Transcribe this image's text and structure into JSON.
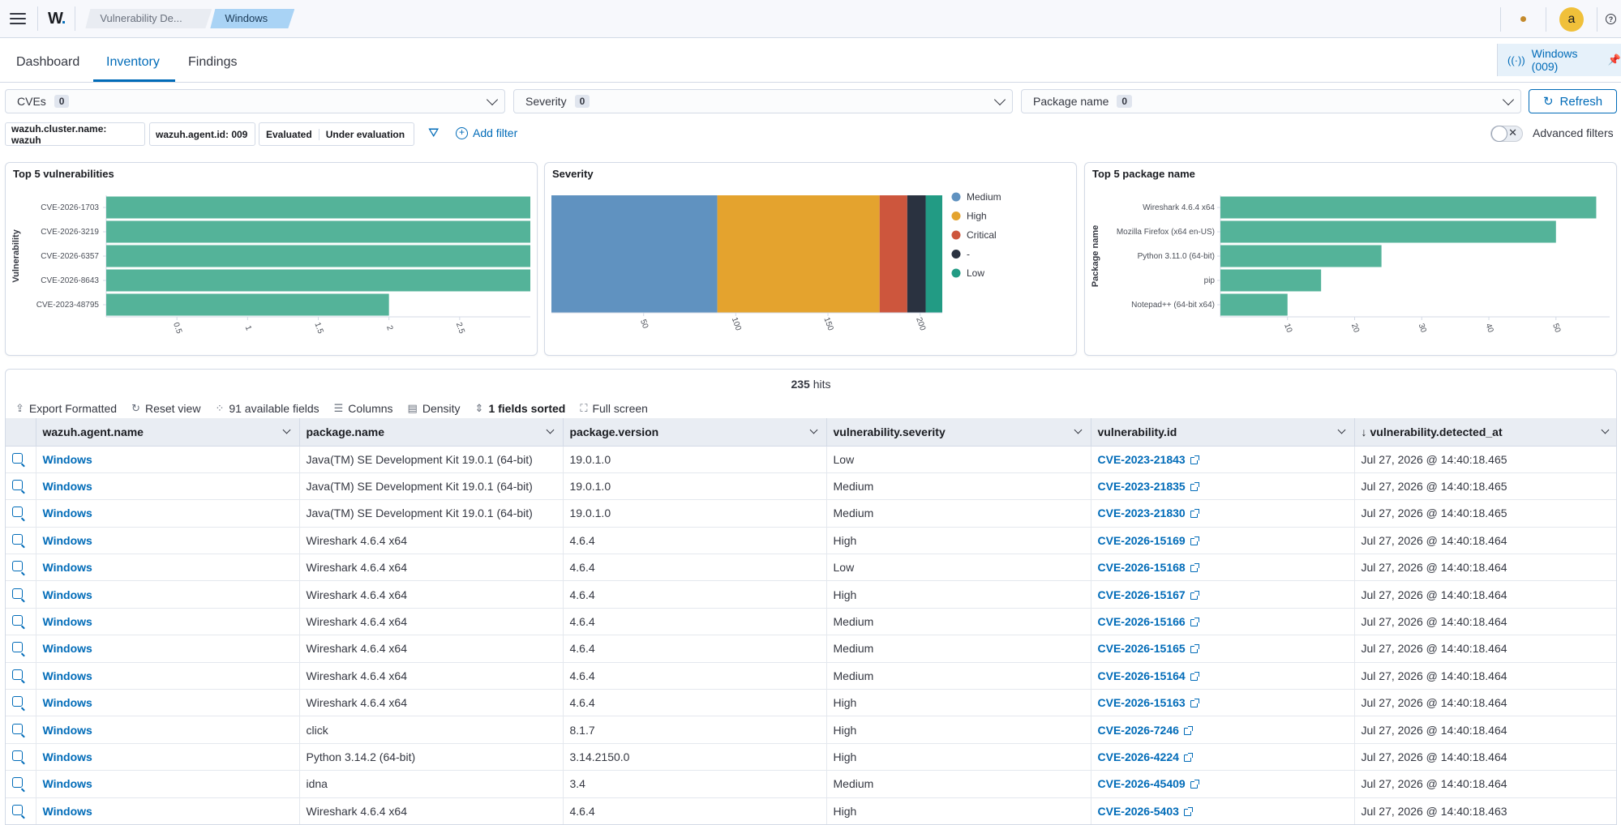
{
  "header": {
    "logo": "W.",
    "breadcrumbs": [
      "Vulnerability De...",
      "Windows"
    ],
    "avatar_letter": "a",
    "help": "?"
  },
  "tabs": [
    "Dashboard",
    "Inventory",
    "Findings"
  ],
  "active_tab": "Inventory",
  "agent_pill": "Windows (009)",
  "filters": {
    "cves": {
      "label": "CVEs",
      "count": "0"
    },
    "severity": {
      "label": "Severity",
      "count": "0"
    },
    "package": {
      "label": "Package name",
      "count": "0"
    },
    "refresh": "Refresh",
    "pills": [
      "wazuh.cluster.name: wazuh",
      "wazuh.agent.id: 009"
    ],
    "status_pill": [
      "Evaluated",
      "Under evaluation"
    ],
    "add_filter": "Add filter",
    "advanced": "Advanced filters"
  },
  "chart_data": [
    {
      "type": "bar",
      "orientation": "horizontal",
      "title": "Top 5 vulnerabilities",
      "ylabel": "Vulnerability",
      "categories": [
        "CVE-2026-1703",
        "CVE-2026-3219",
        "CVE-2026-6357",
        "CVE-2026-8643",
        "CVE-2023-48795"
      ],
      "values": [
        3,
        3,
        3,
        3,
        2
      ],
      "xticks": [
        "0.5",
        "1",
        "1.5",
        "2",
        "2.5"
      ],
      "xlim": [
        0,
        3
      ],
      "color": "#54b399"
    },
    {
      "type": "bar",
      "orientation": "stacked-horizontal",
      "title": "Severity",
      "series": [
        {
          "name": "Medium",
          "value": 90,
          "color": "#6092c0"
        },
        {
          "name": "High",
          "value": 88,
          "color": "#e4a32e"
        },
        {
          "name": "Critical",
          "value": 15,
          "color": "#cd563d"
        },
        {
          "name": "-",
          "value": 10,
          "color": "#2a3240"
        },
        {
          "name": "Low",
          "value": 9,
          "color": "#229b84"
        }
      ],
      "xticks": [
        "50",
        "100",
        "150",
        "200"
      ],
      "xlim": [
        0,
        212
      ],
      "legend_position": "right"
    },
    {
      "type": "bar",
      "orientation": "horizontal",
      "title": "Top 5 package name",
      "ylabel": "Package name",
      "categories": [
        "Wireshark 4.6.4 x64",
        "Mozilla Firefox (x64 en-US)",
        "Python 3.11.0 (64-bit)",
        "pip",
        "Notepad++ (64-bit x64)"
      ],
      "values": [
        56,
        50,
        24,
        15,
        10
      ],
      "xticks": [
        "10",
        "20",
        "30",
        "40",
        "50"
      ],
      "xlim": [
        0,
        58
      ],
      "color": "#54b399"
    }
  ],
  "table": {
    "hits_count": "235",
    "hits_label": "hits",
    "toolbar": [
      "Export Formatted",
      "Reset view",
      "91 available fields",
      "Columns",
      "Density",
      "1 fields sorted",
      "Full screen"
    ],
    "columns": [
      "wazuh.agent.name",
      "package.name",
      "package.version",
      "vulnerability.severity",
      "vulnerability.id",
      "vulnerability.detected_at"
    ],
    "rows": [
      [
        "Windows",
        "Java(TM) SE Development Kit 19.0.1 (64-bit)",
        "19.0.1.0",
        "Low",
        "CVE-2023-21843",
        "Jul 27, 2026 @ 14:40:18.465"
      ],
      [
        "Windows",
        "Java(TM) SE Development Kit 19.0.1 (64-bit)",
        "19.0.1.0",
        "Medium",
        "CVE-2023-21835",
        "Jul 27, 2026 @ 14:40:18.465"
      ],
      [
        "Windows",
        "Java(TM) SE Development Kit 19.0.1 (64-bit)",
        "19.0.1.0",
        "Medium",
        "CVE-2023-21830",
        "Jul 27, 2026 @ 14:40:18.465"
      ],
      [
        "Windows",
        "Wireshark 4.6.4 x64",
        "4.6.4",
        "High",
        "CVE-2026-15169",
        "Jul 27, 2026 @ 14:40:18.464"
      ],
      [
        "Windows",
        "Wireshark 4.6.4 x64",
        "4.6.4",
        "Low",
        "CVE-2026-15168",
        "Jul 27, 2026 @ 14:40:18.464"
      ],
      [
        "Windows",
        "Wireshark 4.6.4 x64",
        "4.6.4",
        "High",
        "CVE-2026-15167",
        "Jul 27, 2026 @ 14:40:18.464"
      ],
      [
        "Windows",
        "Wireshark 4.6.4 x64",
        "4.6.4",
        "Medium",
        "CVE-2026-15166",
        "Jul 27, 2026 @ 14:40:18.464"
      ],
      [
        "Windows",
        "Wireshark 4.6.4 x64",
        "4.6.4",
        "Medium",
        "CVE-2026-15165",
        "Jul 27, 2026 @ 14:40:18.464"
      ],
      [
        "Windows",
        "Wireshark 4.6.4 x64",
        "4.6.4",
        "Medium",
        "CVE-2026-15164",
        "Jul 27, 2026 @ 14:40:18.464"
      ],
      [
        "Windows",
        "Wireshark 4.6.4 x64",
        "4.6.4",
        "High",
        "CVE-2026-15163",
        "Jul 27, 2026 @ 14:40:18.464"
      ],
      [
        "Windows",
        "click",
        "8.1.7",
        "High",
        "CVE-2026-7246",
        "Jul 27, 2026 @ 14:40:18.464"
      ],
      [
        "Windows",
        "Python 3.14.2 (64-bit)",
        "3.14.2150.0",
        "High",
        "CVE-2026-4224",
        "Jul 27, 2026 @ 14:40:18.464"
      ],
      [
        "Windows",
        "idna",
        "3.4",
        "Medium",
        "CVE-2026-45409",
        "Jul 27, 2026 @ 14:40:18.464"
      ],
      [
        "Windows",
        "Wireshark 4.6.4 x64",
        "4.6.4",
        "High",
        "CVE-2026-5403",
        "Jul 27, 2026 @ 14:40:18.463"
      ]
    ]
  }
}
